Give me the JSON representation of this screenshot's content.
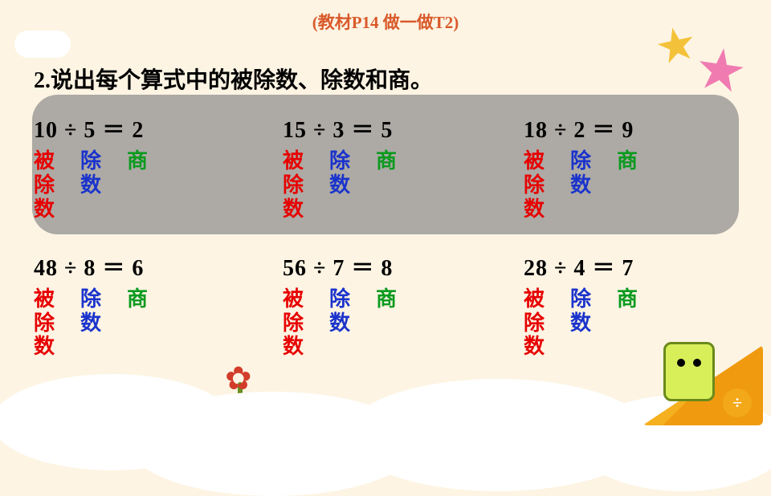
{
  "page_ref": "(教材P14  做一做T2)",
  "question": "2.说出每个算式中的被除数、除数和商。",
  "colors": {
    "background": "#fdf4e3",
    "page_ref": "#d95a2b",
    "text": "#000000",
    "dividend": "#e60000",
    "divisor": "#1a33cc",
    "quotient": "#0b9a1f",
    "highlight_box": "#8e8e8e",
    "star_yellow": "#f4c23a",
    "star_pink": "#f07bb0",
    "ruler": "#f5b020"
  },
  "typography": {
    "page_ref_fontsize": 21,
    "question_fontsize": 28,
    "equation_fontsize": 28,
    "label_fontsize": 26,
    "font_weight": "bold"
  },
  "labels": {
    "dividend": "被除数",
    "divisor": "除数",
    "quotient": "商"
  },
  "equations": [
    [
      {
        "dividend": 10,
        "divisor": 5,
        "quotient": 2,
        "text": "10 ÷ 5 ＝ 2"
      },
      {
        "dividend": 15,
        "divisor": 3,
        "quotient": 5,
        "text": "15 ÷ 3 ＝ 5"
      },
      {
        "dividend": 18,
        "divisor": 2,
        "quotient": 9,
        "text": "18 ÷ 2 ＝ 9"
      }
    ],
    [
      {
        "dividend": 48,
        "divisor": 8,
        "quotient": 6,
        "text": "48 ÷ 8 ＝ 6"
      },
      {
        "dividend": 56,
        "divisor": 7,
        "quotient": 8,
        "text": "56 ÷ 7 ＝ 8"
      },
      {
        "dividend": 28,
        "divisor": 4,
        "quotient": 7,
        "text": "28 ÷ 4 ＝ 7"
      }
    ]
  ],
  "decorations": {
    "star_yellow": "star-icon",
    "star_pink": "star-icon",
    "flower": "flower-icon",
    "mascot": "book-mascot",
    "ruler": "ruler-triangle",
    "divide_symbol": "÷"
  }
}
